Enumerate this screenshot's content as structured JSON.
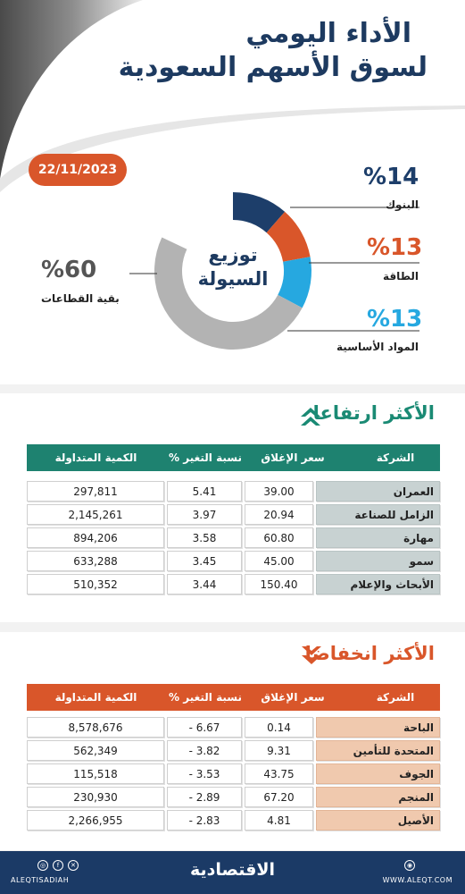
{
  "title": {
    "line1": "الأداء اليومي",
    "line2": "لسوق الأسهم السعودية"
  },
  "date": "22/11/2023",
  "distribution": {
    "center_line1": "توزيع",
    "center_line2": "السيولة",
    "slices": [
      {
        "name": "البنوك",
        "value": 14,
        "label": "%14",
        "color": "#1d3e6a"
      },
      {
        "name": "الطاقة",
        "value": 13,
        "label": "%13",
        "color": "#d9562a"
      },
      {
        "name": "المواد الأساسية",
        "value": 13,
        "label": "%13",
        "color": "#26a8e0"
      },
      {
        "name": "بقية القطاعات",
        "value": 60,
        "label": "%60",
        "color": "#b3b3b3"
      }
    ]
  },
  "gainers": {
    "title": "الأكثر ارتفاعا",
    "headers": {
      "company": "الشركة",
      "close": "سعر الإغلاق",
      "change": "نسبة التغير %",
      "volume": "الكمية المتداولة"
    },
    "rows": [
      {
        "company": "العمران",
        "close": "39.00",
        "change": "5.41",
        "volume": "297,811"
      },
      {
        "company": "الزامل للصناعة",
        "close": "20.94",
        "change": "3.97",
        "volume": "2,145,261"
      },
      {
        "company": "مهارة",
        "close": "60.80",
        "change": "3.58",
        "volume": "894,206"
      },
      {
        "company": "سمو",
        "close": "45.00",
        "change": "3.45",
        "volume": "633,288"
      },
      {
        "company": "الأبحاث والإعلام",
        "close": "150.40",
        "change": "3.44",
        "volume": "510,352"
      }
    ]
  },
  "losers": {
    "title": "الأكثر انخفاضا",
    "headers": {
      "company": "الشركة",
      "close": "سعر الإغلاق",
      "change": "نسبة التغير %",
      "volume": "الكمية المتداولة"
    },
    "rows": [
      {
        "company": "الباحة",
        "close": "0.14",
        "change": "- 6.67",
        "volume": "8,578,676"
      },
      {
        "company": "المتحدة للتأمين",
        "close": "9.31",
        "change": "- 3.82",
        "volume": "562,349"
      },
      {
        "company": "الجوف",
        "close": "43.75",
        "change": "- 3.53",
        "volume": "115,518"
      },
      {
        "company": "المنجم",
        "close": "67.20",
        "change": "- 2.89",
        "volume": "230,930"
      },
      {
        "company": "الأصيل",
        "close": "4.81",
        "change": "- 2.83",
        "volume": "2,266,955"
      }
    ]
  },
  "footer": {
    "logo": "الاقتصادية",
    "handle": "ALEQTISADIAH",
    "url": "WWW.ALEQT.COM"
  }
}
